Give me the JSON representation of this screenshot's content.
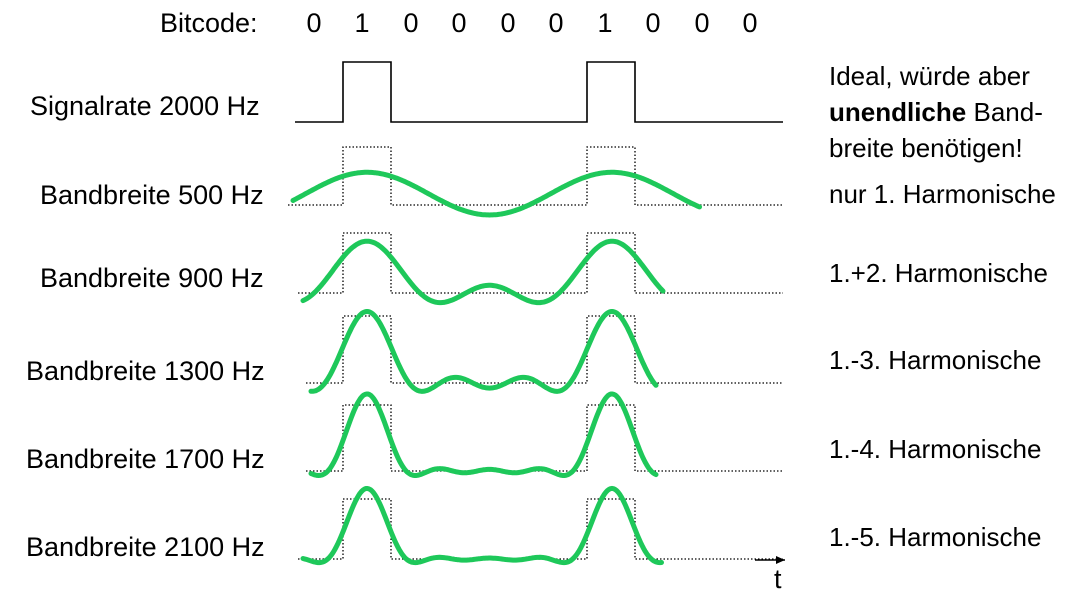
{
  "bitcode": {
    "label": "Bitcode:",
    "bits": [
      "0",
      "1",
      "0",
      "0",
      "0",
      "0",
      "1",
      "0",
      "0",
      "0"
    ]
  },
  "rows": [
    {
      "label": "Signalrate 2000 Hz",
      "harmonics": 0
    },
    {
      "label": "Bandbreite 500 Hz",
      "harmonics": 1
    },
    {
      "label": "Bandbreite 900 Hz",
      "harmonics": 2
    },
    {
      "label": "Bandbreite 1300 Hz",
      "harmonics": 3
    },
    {
      "label": "Bandbreite 1700 Hz",
      "harmonics": 4
    },
    {
      "label": "Bandbreite 2100 Hz",
      "harmonics": 5
    }
  ],
  "notes": {
    "ideal_line1": "Ideal, würde aber",
    "ideal_bold": "unendliche",
    "ideal_line2_rest": " Band-",
    "ideal_line3": "breite benötigen!",
    "h1": "nur 1. Harmonische",
    "h2": "1.+2. Harmonische",
    "h3": "1.-3. Harmonische",
    "h4": "1.-4. Harmonische",
    "h5": "1.-5. Harmonische"
  },
  "axis": {
    "t_label": "t"
  },
  "colors": {
    "wave": "#1ec85a",
    "square": "#000000"
  }
}
